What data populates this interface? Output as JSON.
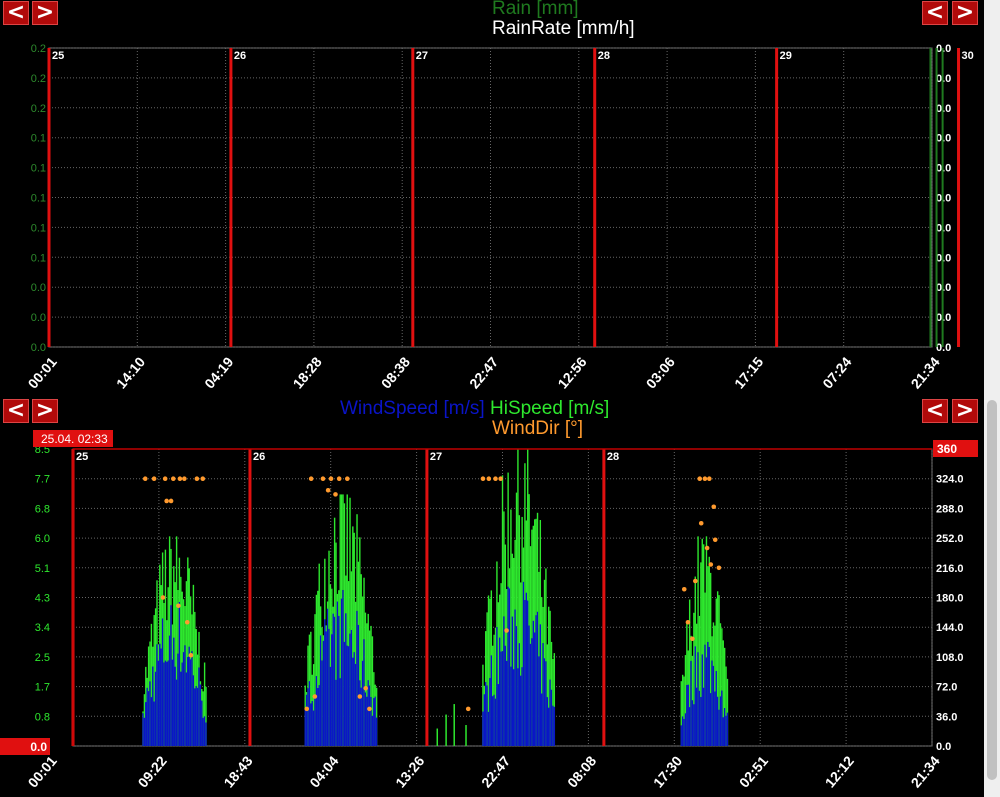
{
  "rain_chart": {
    "legend": [
      {
        "label": "Rain [mm]",
        "color": "#1f7a1f"
      },
      {
        "label": "RainRate [mm/h]",
        "color": "#ffffff"
      }
    ]
  },
  "wind_chart": {
    "legend": [
      {
        "label": "WindSpeed [m/s]",
        "color": "#0a14c8"
      },
      {
        "label": "HiSpeed [m/s]",
        "color": "#2ee82e"
      },
      {
        "label": "WindDir [°]",
        "color": "#ff9a2e"
      }
    ],
    "cursor_label": "25.04. 02:33",
    "left_value_badge": "0.0",
    "right_value_badge": "360"
  },
  "nav": {
    "prev": "<",
    "next": ">"
  },
  "chart_data": [
    {
      "type": "line",
      "title": "",
      "series": [
        {
          "name": "Rain [mm]",
          "color": "#1f7a1f",
          "values": [
            0,
            0,
            0,
            0,
            0,
            0,
            0,
            0,
            0,
            0.2,
            0.2,
            0.2
          ]
        },
        {
          "name": "RainRate [mm/h]",
          "color": "#ffffff",
          "values": [
            0,
            0,
            0,
            0,
            0,
            0,
            0,
            0,
            0,
            0,
            0,
            0
          ]
        }
      ],
      "x_hours": [
        0,
        14,
        28,
        42,
        56,
        70,
        84,
        98,
        112,
        114,
        115,
        116
      ],
      "y_left_ticks": [
        "0.2",
        "0.2",
        "0.2",
        "0.1",
        "0.1",
        "0.1",
        "0.1",
        "0.1",
        "0.0",
        "0.0",
        "0.0"
      ],
      "y_right_ticks": [
        "0.0",
        "0.0",
        "0.0",
        "0.0",
        "0.0",
        "0.0",
        "0.0",
        "0.0",
        "0.0",
        "0.0",
        "0.0"
      ],
      "x_tick_labels": [
        "00:01",
        "14:10",
        "04:19",
        "18:28",
        "08:38",
        "22:47",
        "12:56",
        "03:06",
        "17:15",
        "07:24",
        "21:34"
      ],
      "day_markers": [
        "25",
        "26",
        "27",
        "28",
        "29",
        "30"
      ],
      "rain_events": [
        116.3,
        117.1,
        117.9
      ],
      "grid": true
    },
    {
      "type": "bar",
      "title": "",
      "x_tick_labels": [
        "00:01",
        "09:22",
        "18:43",
        "04:04",
        "13:26",
        "22:47",
        "08:08",
        "17:30",
        "02:51",
        "12:12",
        "21:34"
      ],
      "y_left_ticks": [
        "0.0",
        "0.8",
        "1.7",
        "2.5",
        "3.4",
        "4.3",
        "5.1",
        "6.0",
        "6.8",
        "7.7",
        "8.5"
      ],
      "y_right_ticks": [
        "0.0",
        "36.0",
        "72.0",
        "108.0",
        "144.0",
        "180.0",
        "216.0",
        "252.0",
        "288.0",
        "324.0",
        "360"
      ],
      "ylim_left": [
        0,
        8.5
      ],
      "ylim_right": [
        0,
        360
      ],
      "day_markers": [
        "25",
        "26",
        "27",
        "28"
      ],
      "series": [
        {
          "name": "WindSpeed [m/s]",
          "color": "#0a14c8",
          "active_windows": [
            {
              "start_h": 9.4,
              "end_h": 18.0,
              "peak": 4.4
            },
            {
              "start_h": 31.4,
              "end_h": 41.2,
              "peak": 4.6
            },
            {
              "start_h": 55.5,
              "end_h": 65.2,
              "peak": 5.0
            },
            {
              "start_h": 82.4,
              "end_h": 88.7,
              "peak": 3.5
            }
          ]
        },
        {
          "name": "HiSpeed [m/s]",
          "color": "#2ee82e",
          "active_windows": [
            {
              "start_h": 9.4,
              "end_h": 18.0,
              "peak": 6.0
            },
            {
              "start_h": 31.4,
              "end_h": 41.2,
              "peak": 7.2
            },
            {
              "start_h": 55.5,
              "end_h": 65.2,
              "peak": 8.5
            },
            {
              "start_h": 82.4,
              "end_h": 88.7,
              "peak": 6.0
            }
          ]
        },
        {
          "name": "WindDir [°]",
          "color": "#ff9a2e",
          "points_deg": [
            [
              9.8,
              324
            ],
            [
              11.0,
              324
            ],
            [
              12.5,
              324
            ],
            [
              13.6,
              324
            ],
            [
              14.5,
              324
            ],
            [
              15.1,
              324
            ],
            [
              12.7,
              297
            ],
            [
              13.3,
              297
            ],
            [
              12.2,
              180
            ],
            [
              14.3,
              170
            ],
            [
              16.8,
              324
            ],
            [
              17.6,
              324
            ],
            [
              15.5,
              150
            ],
            [
              16.0,
              110
            ],
            [
              32.3,
              324
            ],
            [
              33.9,
              324
            ],
            [
              35.0,
              324
            ],
            [
              36.1,
              324
            ],
            [
              37.2,
              324
            ],
            [
              34.6,
              310
            ],
            [
              35.6,
              305
            ],
            [
              31.7,
              45
            ],
            [
              32.8,
              60
            ],
            [
              38.9,
              60
            ],
            [
              39.7,
              70
            ],
            [
              40.2,
              45
            ],
            [
              55.6,
              324
            ],
            [
              56.4,
              324
            ],
            [
              57.3,
              324
            ],
            [
              58.0,
              324
            ],
            [
              53.6,
              45
            ],
            [
              58.8,
              140
            ],
            [
              82.9,
              190
            ],
            [
              83.4,
              150
            ],
            [
              84.0,
              130
            ],
            [
              85.0,
              324
            ],
            [
              85.7,
              324
            ],
            [
              86.3,
              324
            ],
            [
              85.2,
              270
            ],
            [
              86.0,
              240
            ],
            [
              86.5,
              220
            ],
            [
              87.1,
              250
            ],
            [
              87.6,
              216
            ],
            [
              86.9,
              290
            ],
            [
              84.4,
              200
            ]
          ]
        }
      ],
      "grid": true
    }
  ]
}
